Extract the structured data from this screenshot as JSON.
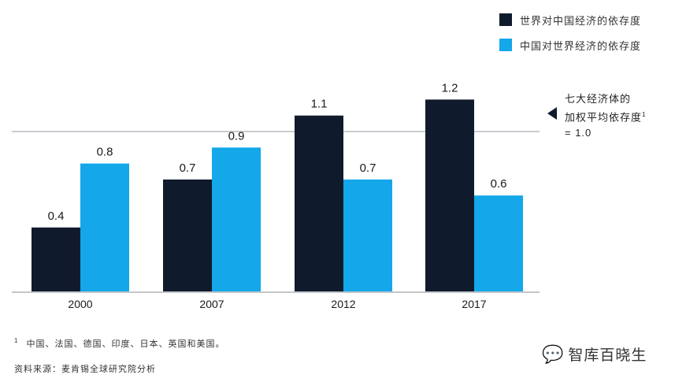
{
  "colors": {
    "series1": "#0f1b2d",
    "series2": "#14a7ea",
    "ref_line": "#b8bcc2",
    "baseline": "#8a8f96"
  },
  "chart_data": {
    "type": "bar",
    "title": "",
    "xlabel": "",
    "ylabel": "",
    "categories": [
      "2000",
      "2007",
      "2012",
      "2017"
    ],
    "series": [
      {
        "name": "世界对中国经济的依存度",
        "values": [
          0.4,
          0.7,
          1.1,
          1.2
        ]
      },
      {
        "name": "中国对世界经济的依存度",
        "values": [
          0.8,
          0.9,
          0.7,
          0.6
        ]
      }
    ],
    "value_labels": [
      [
        "0.4",
        "0.7",
        "1.1",
        "1.2"
      ],
      [
        "0.8",
        "0.9",
        "0.7",
        "0.6"
      ]
    ],
    "ylim": [
      0,
      1.2
    ],
    "reference_line": {
      "value": 1.0
    },
    "legend_position": "top-right"
  },
  "annotation": {
    "line1": "七大经济体的",
    "line2": "加权平均依存度",
    "superscript": "1",
    "line3": "= 1.0"
  },
  "footnote": {
    "marker": "1",
    "text": "中国、法国、德国、印度、日本、英国和美国。"
  },
  "source": "资料来源：麦肯锡全球研究院分析",
  "watermark": {
    "icon": "wechat-icon",
    "text": "智库百晓生"
  }
}
